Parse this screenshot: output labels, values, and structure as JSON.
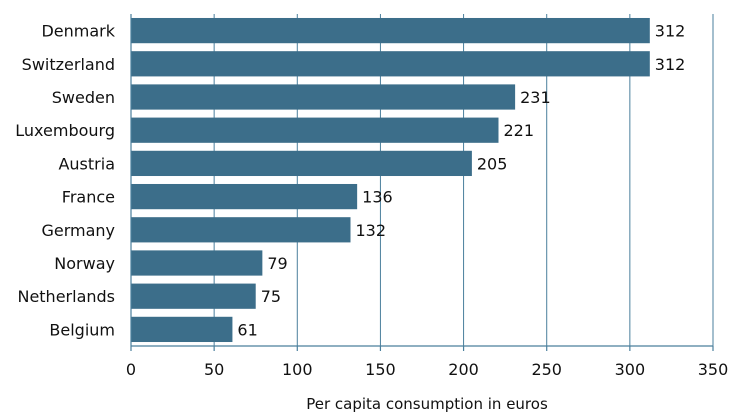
{
  "chart_data": {
    "type": "bar",
    "orientation": "horizontal",
    "categories": [
      "Denmark",
      "Switzerland",
      "Sweden",
      "Luxembourg",
      "Austria",
      "France",
      "Germany",
      "Norway",
      "Netherlands",
      "Belgium"
    ],
    "values": [
      312,
      312,
      231,
      221,
      205,
      136,
      132,
      79,
      75,
      61
    ],
    "xlabel": "Per capita consumption in euros",
    "ylabel": "",
    "xlim": [
      0,
      350
    ],
    "xticks": [
      0,
      50,
      100,
      150,
      200,
      250,
      300,
      350
    ],
    "grid": "vertical",
    "bar_color": "#3c6e8a",
    "grid_color": "#4a7f9c"
  }
}
